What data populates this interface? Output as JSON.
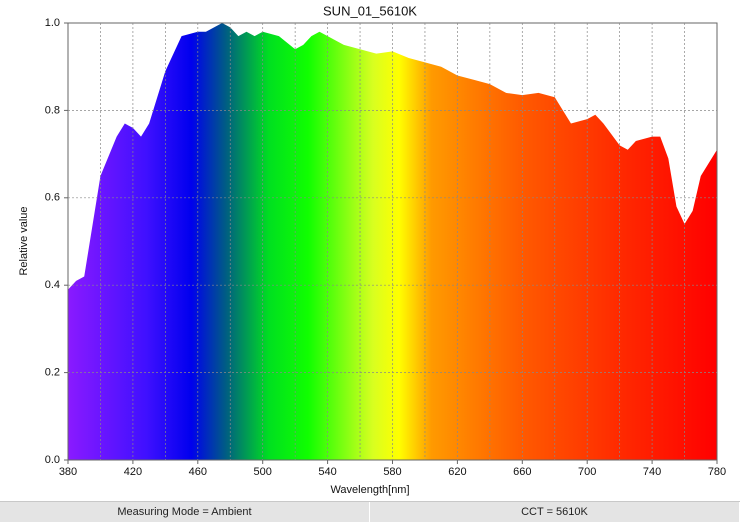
{
  "chart_data": {
    "type": "area",
    "title": "SUN_01_5610K",
    "x_label": "Wavelength[nm]",
    "y_label": "Relative value",
    "x": [
      380,
      385,
      390,
      400,
      410,
      415,
      420,
      425,
      430,
      440,
      450,
      460,
      465,
      470,
      475,
      480,
      485,
      490,
      495,
      500,
      510,
      520,
      525,
      530,
      535,
      540,
      550,
      560,
      570,
      580,
      590,
      600,
      610,
      620,
      630,
      640,
      650,
      660,
      670,
      680,
      690,
      700,
      705,
      710,
      720,
      725,
      730,
      740,
      745,
      750,
      755,
      760,
      765,
      770,
      780
    ],
    "values": [
      0.39,
      0.41,
      0.42,
      0.65,
      0.74,
      0.77,
      0.76,
      0.74,
      0.77,
      0.89,
      0.97,
      0.98,
      0.98,
      0.99,
      1.0,
      0.99,
      0.97,
      0.98,
      0.97,
      0.98,
      0.97,
      0.94,
      0.95,
      0.97,
      0.98,
      0.97,
      0.95,
      0.94,
      0.93,
      0.935,
      0.92,
      0.91,
      0.9,
      0.88,
      0.87,
      0.86,
      0.84,
      0.835,
      0.84,
      0.83,
      0.77,
      0.78,
      0.79,
      0.77,
      0.72,
      0.71,
      0.73,
      0.74,
      0.74,
      0.69,
      0.58,
      0.54,
      0.57,
      0.65,
      0.71
    ],
    "xlim": [
      380,
      780
    ],
    "xticks": [
      380,
      420,
      460,
      500,
      540,
      580,
      620,
      660,
      700,
      740,
      780
    ],
    "xgrid": [
      400,
      420,
      440,
      460,
      480,
      500,
      520,
      540,
      560,
      580,
      600,
      620,
      640,
      660,
      680,
      700,
      720,
      740,
      760
    ],
    "ylim": [
      0,
      1
    ],
    "yticks": [
      {
        "value": 0,
        "label": "0.0"
      },
      0.2,
      0.4,
      0.6,
      0.8,
      {
        "value": 1,
        "label": "1.0"
      }
    ],
    "ygrid": [
      0.2,
      0.4,
      0.6,
      0.8
    ],
    "grid": true
  },
  "status_bar": {
    "items": [
      "Measuring Mode = Ambient",
      "CCT = 5610K"
    ]
  }
}
